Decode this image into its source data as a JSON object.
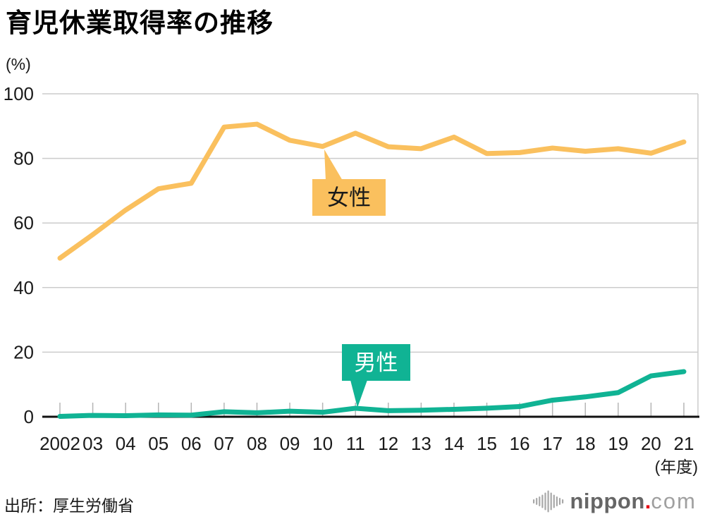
{
  "chart": {
    "title": "育児休業取得率の推移",
    "y_unit": "(%)",
    "x_unit": "(年度)",
    "source": "出所：厚生労働省"
  },
  "chart_data": {
    "type": "line",
    "title": "育児休業取得率の推移",
    "xlabel": "(年度)",
    "ylabel": "(%)",
    "categories": [
      "2002",
      "03",
      "04",
      "05",
      "06",
      "07",
      "08",
      "09",
      "10",
      "11",
      "12",
      "13",
      "14",
      "15",
      "16",
      "17",
      "18",
      "19",
      "20",
      "21"
    ],
    "y_ticks": [
      0,
      20,
      40,
      60,
      80,
      100
    ],
    "ylim": [
      0,
      100
    ],
    "grid": "horizontal",
    "legend_position": "inline-callouts",
    "series": [
      {
        "name": "女性",
        "color": "#fac05e",
        "values": [
          49.1,
          56.4,
          64.0,
          70.6,
          72.3,
          89.7,
          90.6,
          85.6,
          83.7,
          87.8,
          83.6,
          83.0,
          86.6,
          81.5,
          81.8,
          83.2,
          82.2,
          83.0,
          81.6,
          85.1
        ]
      },
      {
        "name": "男性",
        "color": "#10b394",
        "values": [
          0.12,
          0.42,
          0.33,
          0.56,
          0.5,
          1.56,
          1.23,
          1.72,
          1.38,
          2.63,
          1.89,
          2.03,
          2.3,
          2.65,
          3.16,
          5.14,
          6.16,
          7.48,
          12.65,
          13.97
        ]
      }
    ],
    "annotations": [
      {
        "text": "女性",
        "series": 0,
        "points_to_category": "10"
      },
      {
        "text": "男性",
        "series": 1,
        "points_to_category": "11"
      }
    ]
  },
  "logo": {
    "brand": "nippon",
    "dot": ".",
    "tld": "com"
  },
  "colors": {
    "women_line": "#fac05e",
    "men_line": "#10b394",
    "gridline": "#cccccc",
    "axis": "#111111",
    "text": "#1a1a1a",
    "logo_red": "#e60012",
    "logo_gray": "#666666"
  }
}
